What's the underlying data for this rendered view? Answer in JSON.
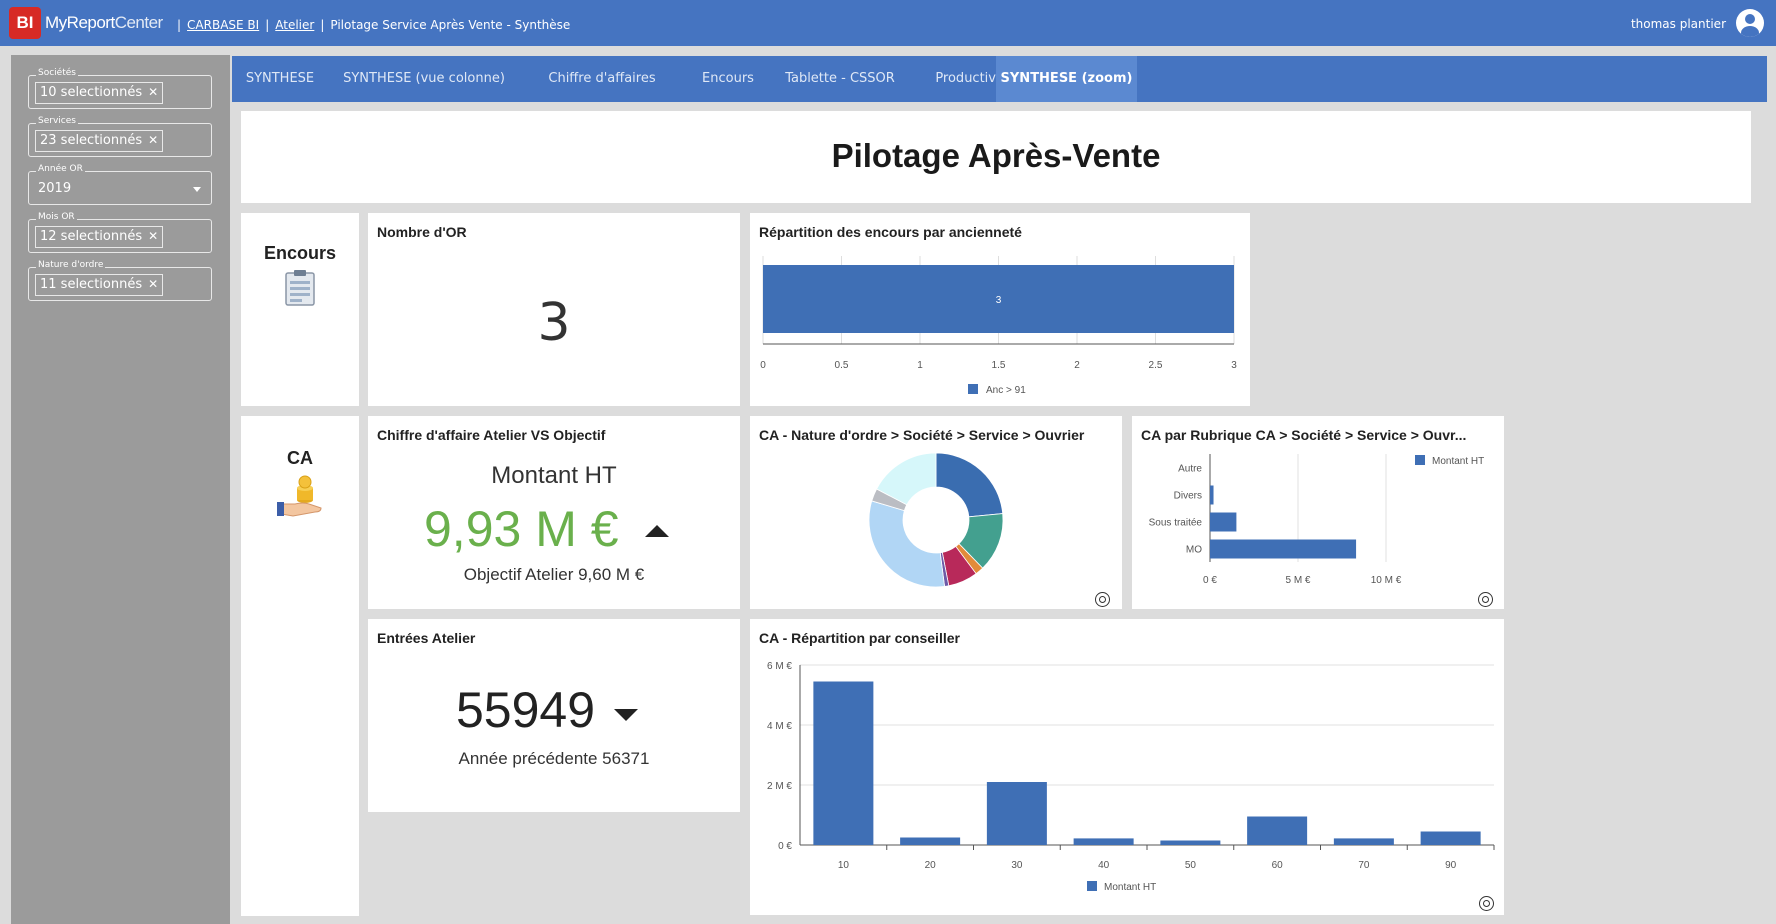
{
  "header": {
    "logo_text": "BI",
    "brand_bold": "MyReport",
    "brand_light": "Center",
    "breadcrumb": [
      "CARBASE BI",
      "Atelier",
      "Pilotage Service Après Vente - Synthèse"
    ],
    "user_name": "thomas plantier"
  },
  "filters": [
    {
      "label": "Sociétés",
      "value": "10 selectionnés",
      "type": "chip"
    },
    {
      "label": "Services",
      "value": "23 selectionnés",
      "type": "chip"
    },
    {
      "label": "Année OR",
      "value": "2019",
      "type": "select"
    },
    {
      "label": "Mois OR",
      "value": "12 selectionnés",
      "type": "chip"
    },
    {
      "label": "Nature d'ordre",
      "value": "11 selectionnés",
      "type": "chip"
    }
  ],
  "tabs": [
    {
      "label": "SYNTHESE",
      "active": false
    },
    {
      "label": "SYNTHESE (vue colonne)",
      "active": false
    },
    {
      "label": "Chiffre d'affaires",
      "active": false
    },
    {
      "label": "Encours",
      "active": false
    },
    {
      "label": "Tablette - CSSOR",
      "active": false
    },
    {
      "label": "Productivité",
      "active": false
    },
    {
      "label": "SYNTHESE (zoom)",
      "active": true
    }
  ],
  "page_title": "Pilotage Après-Vente",
  "sections": {
    "encours": "Encours",
    "ca": "CA"
  },
  "kpis": {
    "nombre_or": {
      "title": "Nombre d'OR",
      "value": "3"
    },
    "ca_objectif": {
      "title": "Chiffre d'affaire Atelier VS Objectif",
      "measure": "Montant HT",
      "value": "9,93 M €",
      "trend": "up",
      "objective": "Objectif Atelier 9,60 M €",
      "value_color": "#6ab04c"
    },
    "entrees": {
      "title": "Entrées Atelier",
      "value": "55949",
      "trend": "down",
      "previous": "Année précédente 56371"
    }
  },
  "colors": {
    "brand_blue": "#4574c1",
    "series_blue": "#3f6fb5",
    "logo_red": "#d72a25"
  },
  "chart_data": [
    {
      "id": "repartition-encours",
      "title": "Répartition des encours par ancienneté",
      "type": "bar",
      "orientation": "horizontal",
      "series": [
        {
          "name": "Anc > 91",
          "values": [
            3
          ]
        }
      ],
      "data_labels": [
        "3"
      ],
      "xlim": [
        0,
        3
      ],
      "x_ticks": [
        "0",
        "0.5",
        "1",
        "1.5",
        "2",
        "2.5",
        "3"
      ],
      "grid": true,
      "legend": "bottom"
    },
    {
      "id": "ca-nature-ordre",
      "title": "CA - Nature d'ordre > Société > Service > Ouvrier",
      "type": "pie",
      "donut": true,
      "values": [
        23,
        14,
        2,
        7,
        1,
        31,
        3,
        17
      ],
      "colors": [
        "#3a6db0",
        "#43a08f",
        "#e28b3a",
        "#b8295a",
        "#6d5aa7",
        "#b1d6f5",
        "#bbbdc3",
        "#d6f7fa"
      ]
    },
    {
      "id": "ca-rubrique",
      "title": "CA par Rubrique CA > Société > Service > Ouvr...",
      "type": "bar",
      "orientation": "horizontal",
      "categories": [
        "Autre",
        "Divers",
        "Sous traitée",
        "MO"
      ],
      "series": [
        {
          "name": "Montant HT",
          "values": [
            0,
            0.2,
            1.5,
            8.3
          ]
        }
      ],
      "xlim": [
        0,
        10
      ],
      "x_ticks": [
        "0 €",
        "5 M €",
        "10 M €"
      ],
      "grid": true,
      "legend": "top-right"
    },
    {
      "id": "ca-conseiller",
      "title": "CA - Répartition par conseiller",
      "type": "bar",
      "categories": [
        "10",
        "20",
        "30",
        "40",
        "50",
        "60",
        "70",
        "90"
      ],
      "series": [
        {
          "name": "Montant HT",
          "values": [
            5.45,
            0.25,
            2.1,
            0.22,
            0.15,
            0.95,
            0.22,
            0.45
          ]
        }
      ],
      "ylim": [
        0,
        6
      ],
      "y_ticks": [
        "0 €",
        "2 M €",
        "4 M €",
        "6 M €"
      ],
      "grid": true,
      "legend": "bottom"
    }
  ]
}
